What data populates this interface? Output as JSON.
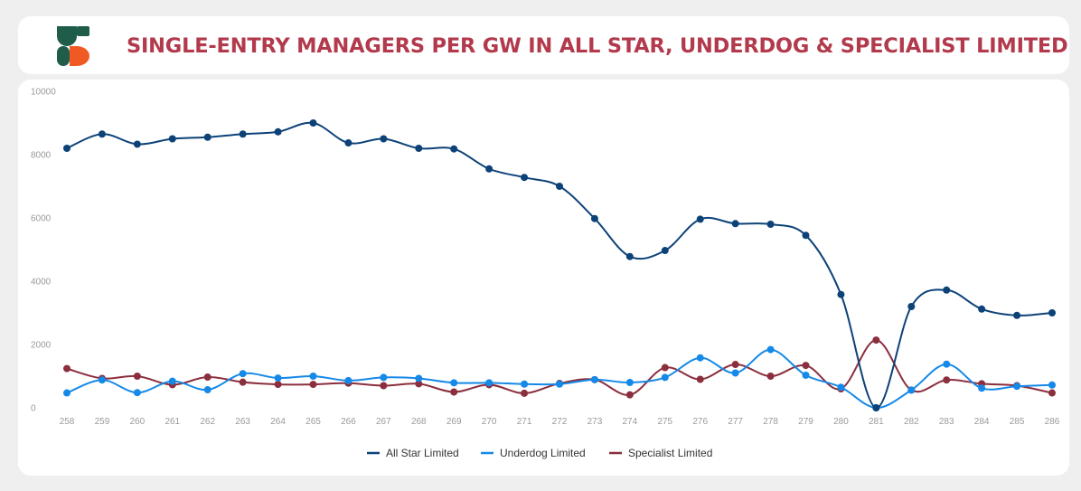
{
  "header": {
    "title": "SINGLE-ENTRY MANAGERS PER GW IN ALL STAR, UNDERDOG & SPECIALIST LIMITED"
  },
  "colors": {
    "title": "#b23a4c",
    "logo_green": "#1f5c4a",
    "logo_orange": "#f05a22"
  },
  "chart_data": {
    "type": "line",
    "title": "SINGLE-ENTRY MANAGERS PER GW IN ALL STAR, UNDERDOG & SPECIALIST LIMITED",
    "xlabel": "",
    "ylabel": "",
    "ylim": [
      0,
      10000
    ],
    "y_ticks": [
      0,
      2000,
      4000,
      6000,
      8000,
      10000
    ],
    "grid": false,
    "legend_position": "bottom",
    "categories": [
      "258",
      "259",
      "260",
      "261",
      "262",
      "263",
      "264",
      "265",
      "266",
      "267",
      "268",
      "269",
      "270",
      "271",
      "272",
      "273",
      "274",
      "275",
      "276",
      "277",
      "278",
      "279",
      "280",
      "281",
      "282",
      "283",
      "284",
      "285",
      "286"
    ],
    "series": [
      {
        "name": "All Star Limited",
        "color": "#0d4278",
        "values": [
          8200,
          8650,
          8330,
          8500,
          8550,
          8650,
          8720,
          9000,
          8370,
          8500,
          8200,
          8180,
          7550,
          7280,
          7000,
          5980,
          4780,
          4970,
          5960,
          5820,
          5800,
          5450,
          3580,
          0,
          3200,
          3720,
          3120,
          2920,
          3000
        ]
      },
      {
        "name": "Underdog Limited",
        "color": "#1589e8",
        "values": [
          470,
          880,
          480,
          840,
          570,
          1080,
          940,
          1000,
          860,
          960,
          930,
          790,
          790,
          750,
          750,
          890,
          800,
          960,
          1580,
          1100,
          1840,
          1030,
          650,
          0,
          560,
          1380,
          620,
          680,
          720
        ]
      },
      {
        "name": "Specialist Limited",
        "color": "#8b2e3e",
        "values": [
          1240,
          930,
          1000,
          730,
          970,
          810,
          740,
          740,
          780,
          700,
          760,
          500,
          730,
          460,
          770,
          890,
          410,
          1270,
          900,
          1370,
          1000,
          1340,
          600,
          2140,
          560,
          880,
          760,
          700,
          470
        ]
      }
    ]
  }
}
